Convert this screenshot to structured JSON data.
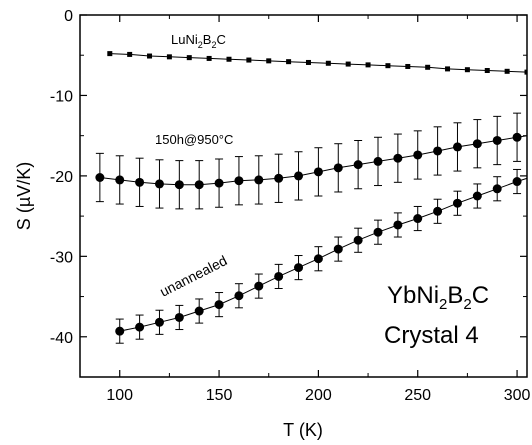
{
  "chart_data": {
    "type": "scatter",
    "xlabel": "T (K)",
    "ylabel": "S (µV/K)",
    "xlim": [
      80,
      305
    ],
    "ylim": [
      -45,
      0
    ],
    "xticks": [
      100,
      150,
      200,
      250,
      300
    ],
    "yticks": [
      0,
      -10,
      -20,
      -30,
      -40
    ],
    "grid": false,
    "series": [
      {
        "name": "LuNi2B2C",
        "marker": "square",
        "x": [
          95,
          105,
          115,
          125,
          135,
          145,
          155,
          165,
          175,
          185,
          195,
          205,
          215,
          225,
          235,
          245,
          255,
          265,
          275,
          285,
          295,
          305
        ],
        "y": [
          -4.8,
          -4.9,
          -5.1,
          -5.2,
          -5.3,
          -5.4,
          -5.5,
          -5.6,
          -5.7,
          -5.8,
          -5.9,
          -6.0,
          -6.1,
          -6.2,
          -6.3,
          -6.4,
          -6.5,
          -6.7,
          -6.8,
          -6.9,
          -7.0,
          -7.1
        ]
      },
      {
        "name": "150h@950°C",
        "marker": "circle",
        "x": [
          90,
          100,
          110,
          120,
          130,
          140,
          150,
          160,
          170,
          180,
          190,
          200,
          210,
          220,
          230,
          240,
          250,
          260,
          270,
          280,
          290,
          300,
          310
        ],
        "y": [
          -20.2,
          -20.5,
          -20.8,
          -21.0,
          -21.1,
          -21.1,
          -20.9,
          -20.6,
          -20.5,
          -20.3,
          -20.0,
          -19.5,
          -19.0,
          -18.6,
          -18.2,
          -17.8,
          -17.4,
          -16.9,
          -16.4,
          -16.0,
          -15.6,
          -15.2,
          -14.8
        ],
        "error": 3.0
      },
      {
        "name": "unannealed",
        "marker": "circle",
        "x": [
          100,
          110,
          120,
          130,
          140,
          150,
          160,
          170,
          180,
          190,
          200,
          210,
          220,
          230,
          240,
          250,
          260,
          270,
          280,
          290,
          300,
          310
        ],
        "y": [
          -39.3,
          -38.8,
          -38.2,
          -37.6,
          -36.8,
          -36.0,
          -34.9,
          -33.7,
          -32.5,
          -31.4,
          -30.3,
          -29.1,
          -28.0,
          -27.0,
          -26.1,
          -25.3,
          -24.4,
          -23.4,
          -22.5,
          -21.6,
          -20.7,
          -19.9
        ],
        "error": 1.5
      }
    ]
  },
  "annotations": {
    "series_a_label": "LuNi2B2C",
    "series_b_label": "150h@950°C",
    "series_c_label": "unannealed",
    "sample_line1": "YbNi2B2C",
    "sample_line2": "Crystal 4"
  }
}
